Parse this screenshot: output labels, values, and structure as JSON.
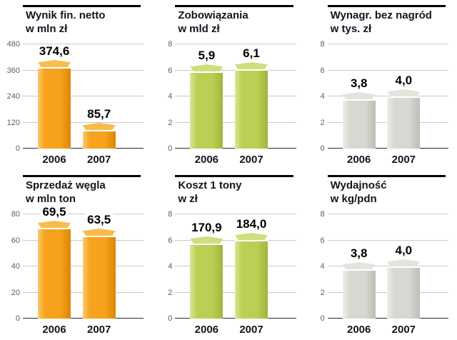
{
  "themes": {
    "orange": {
      "light": "#FBC96B",
      "main": "#F6A21D",
      "dark": "#DB8605",
      "cap": "#F8BC4F"
    },
    "green": {
      "light": "#D9E596",
      "main": "#BCCF55",
      "dark": "#9FB53B",
      "cap": "#CFDE7F"
    },
    "gray": {
      "light": "#EDEDE9",
      "main": "#D8D8D2",
      "dark": "#BDBDB6",
      "cap": "#E4E4DF"
    }
  },
  "layout_colors": {
    "grid_line": "#c9c9c9",
    "baseline": "#2b2b2b",
    "title_text": "#15151f",
    "tick_text": "#5f5f5f"
  },
  "chart_data": [
    {
      "type": "bar",
      "title": "Wynik fin. netto",
      "subtitle": "w mln zł",
      "categories": [
        "2006",
        "2007"
      ],
      "values": [
        374.6,
        85.7
      ],
      "value_labels": [
        "374,6",
        "85,7"
      ],
      "ylim": [
        0,
        480
      ],
      "yticks": [
        0,
        120,
        240,
        360,
        480
      ],
      "bar_fractions": [
        0.78,
        0.179
      ],
      "theme": "orange",
      "grid": true,
      "legend": "none"
    },
    {
      "type": "bar",
      "title": "Zobowiązania",
      "subtitle": "w mld zł",
      "categories": [
        "2006",
        "2007"
      ],
      "values": [
        5.9,
        6.1
      ],
      "value_labels": [
        "5,9",
        "6,1"
      ],
      "ylim": [
        0,
        8
      ],
      "yticks": [
        0,
        2,
        4,
        6,
        8
      ],
      "bar_fractions": [
        0.7375,
        0.7625
      ],
      "theme": "green",
      "grid": true,
      "legend": "none"
    },
    {
      "type": "bar",
      "title": "Wynagr. bez nagród",
      "subtitle": "w tys. zł",
      "categories": [
        "2006",
        "2007"
      ],
      "values": [
        3.8,
        4.0
      ],
      "value_labels": [
        "3,8",
        "4,0"
      ],
      "ylim": [
        0,
        8
      ],
      "yticks": [
        0,
        2,
        4,
        6,
        8
      ],
      "bar_fractions": [
        0.475,
        0.5
      ],
      "theme": "gray",
      "grid": true,
      "legend": "none"
    },
    {
      "type": "bar",
      "title": "Sprzedaż węgla",
      "subtitle": "w mln ton",
      "categories": [
        "2006",
        "2007"
      ],
      "values": [
        69.5,
        63.5
      ],
      "value_labels": [
        "69,5",
        "63,5"
      ],
      "ylim": [
        0,
        80
      ],
      "yticks": [
        0,
        20,
        40,
        60,
        80
      ],
      "bar_fractions": [
        0.869,
        0.794
      ],
      "theme": "orange",
      "grid": true,
      "legend": "none"
    },
    {
      "type": "bar",
      "title": "Koszt 1 tony",
      "subtitle": "w zł",
      "categories": [
        "2006",
        "2007"
      ],
      "values": [
        170.9,
        184.0
      ],
      "value_labels": [
        "170,9",
        "184,0"
      ],
      "ylim": [
        0,
        8
      ],
      "yticks": [
        0,
        2,
        4,
        6,
        8
      ],
      "bar_fractions": [
        0.72,
        0.75
      ],
      "theme": "green",
      "grid": true,
      "legend": "none"
    },
    {
      "type": "bar",
      "title": "Wydajność",
      "subtitle": "w kg/pdn",
      "categories": [
        "2006",
        "2007"
      ],
      "values": [
        3.8,
        4.0
      ],
      "value_labels": [
        "3,8",
        "4,0"
      ],
      "ylim": [
        0,
        8
      ],
      "yticks": [
        0,
        2,
        4,
        6,
        8
      ],
      "bar_fractions": [
        0.475,
        0.5
      ],
      "theme": "gray",
      "grid": true,
      "legend": "none"
    }
  ]
}
